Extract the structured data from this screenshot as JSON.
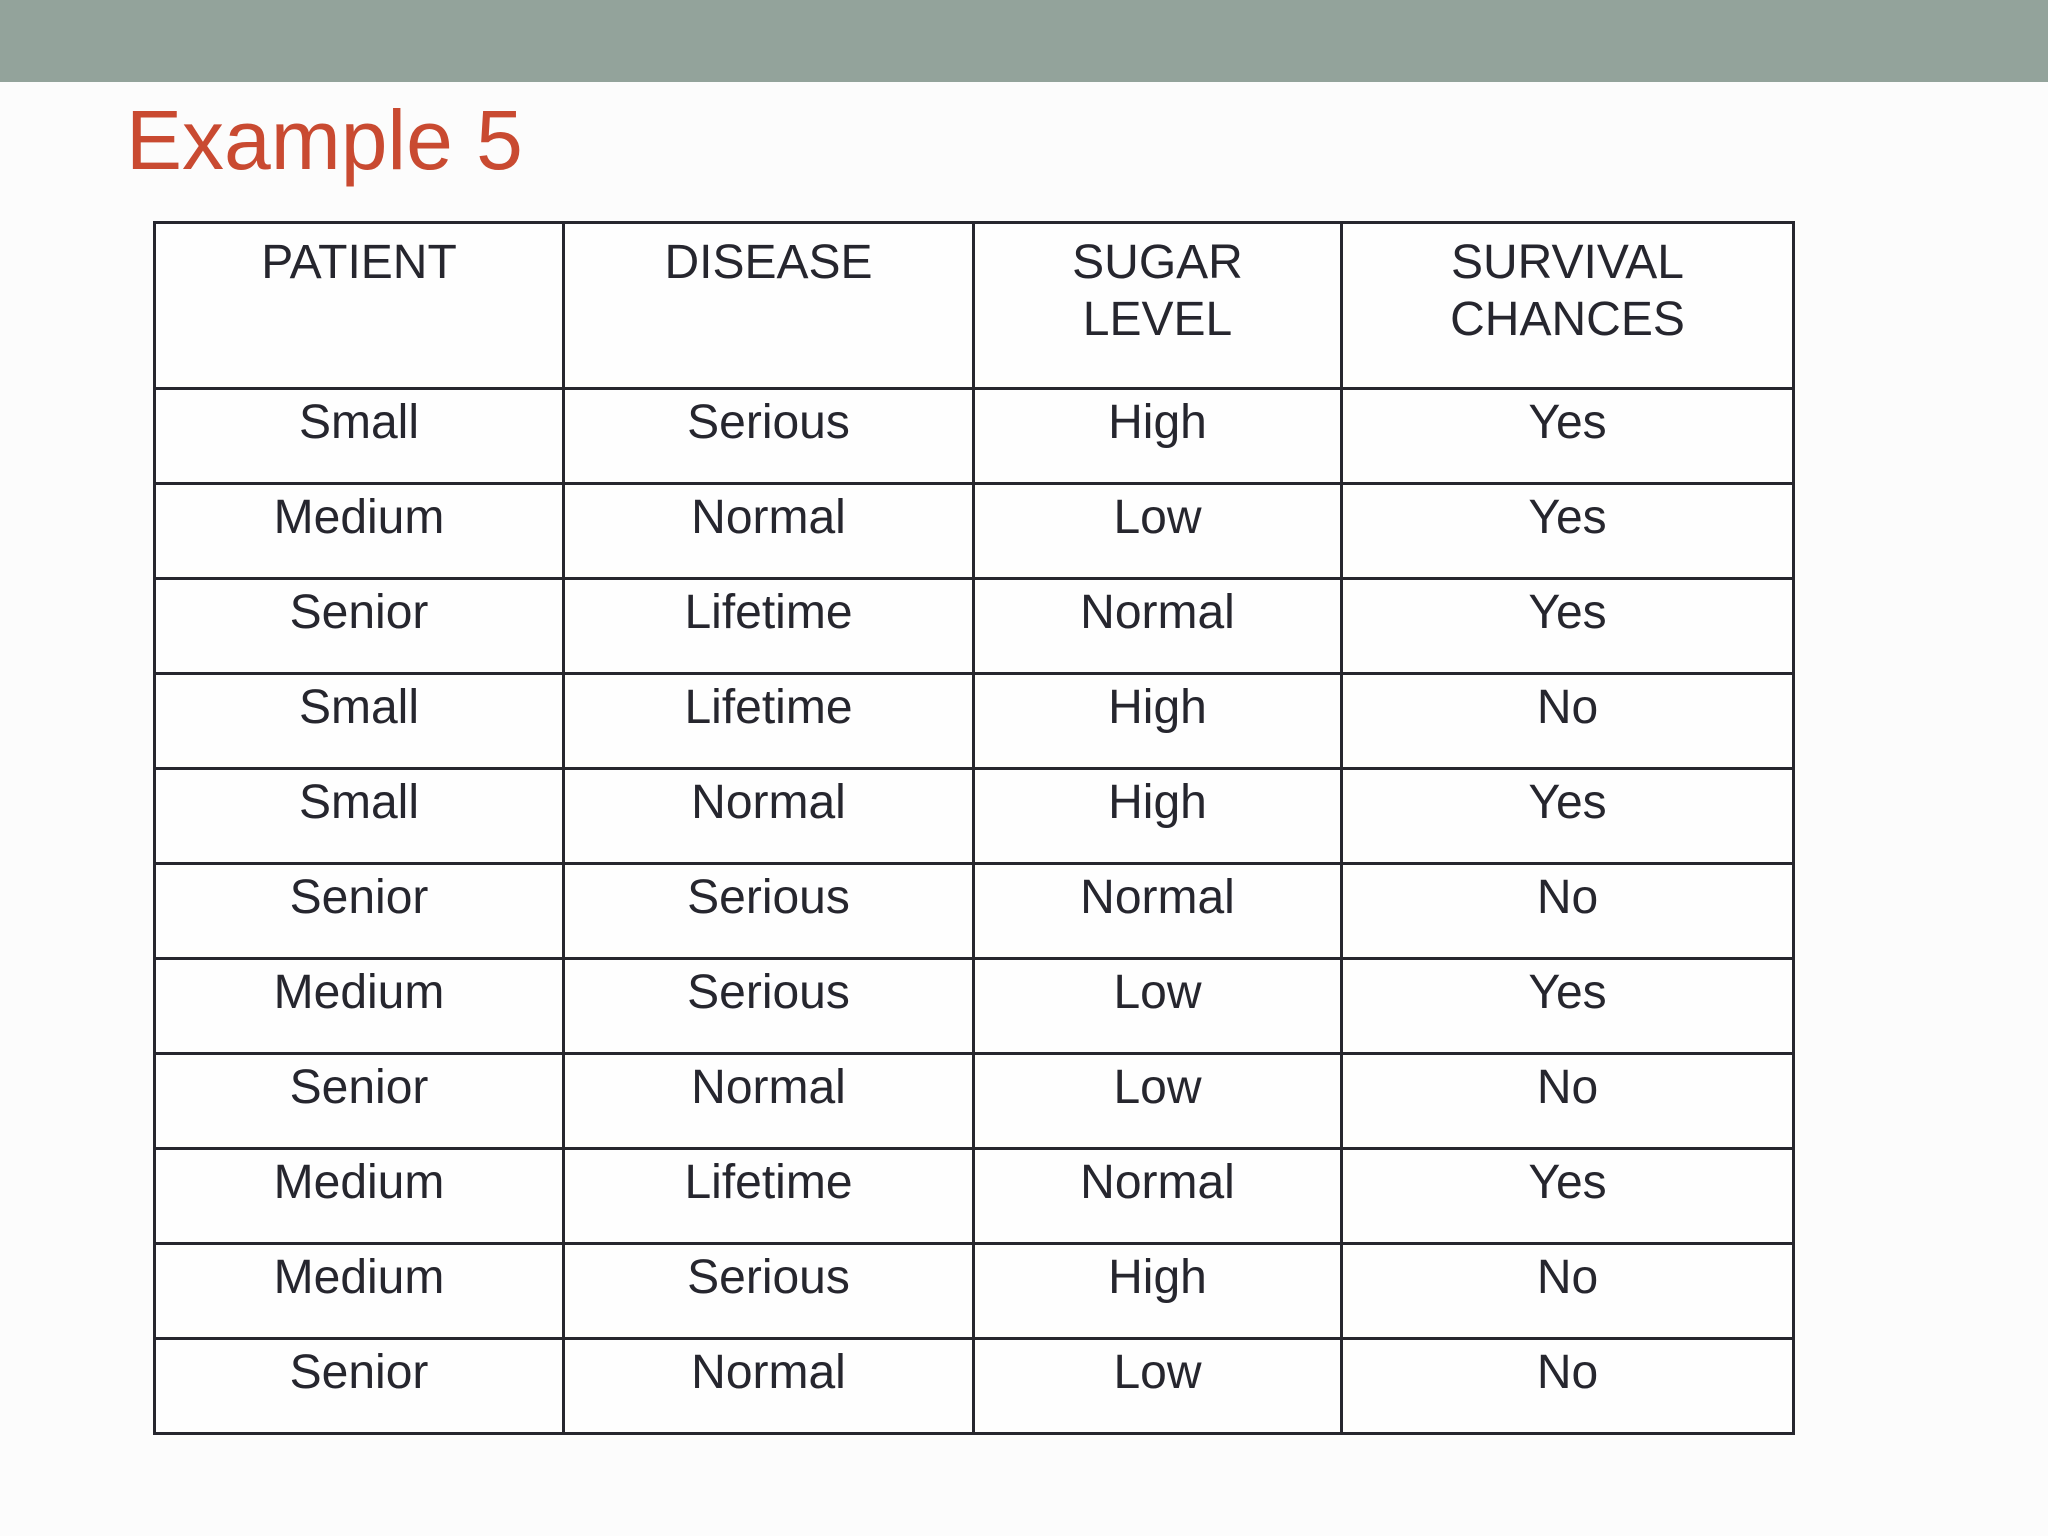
{
  "slide": {
    "title": "Example 5"
  },
  "colors": {
    "top-bar": "#93a39b",
    "title": "#c94a31",
    "text": "#26262e",
    "border": "#26262e",
    "background": "#fcfcfc"
  },
  "table": {
    "headers": [
      "PATIENT",
      "DISEASE",
      "SUGAR\nLEVEL",
      "SURVIVAL\nCHANCES"
    ],
    "rows": [
      [
        "Small",
        "Serious",
        "High",
        "Yes"
      ],
      [
        "Medium",
        "Normal",
        "Low",
        "Yes"
      ],
      [
        "Senior",
        "Lifetime",
        "Normal",
        "Yes"
      ],
      [
        "Small",
        "Lifetime",
        "High",
        "No"
      ],
      [
        "Small",
        "Normal",
        "High",
        "Yes"
      ],
      [
        "Senior",
        "Serious",
        "Normal",
        "No"
      ],
      [
        "Medium",
        "Serious",
        "Low",
        "Yes"
      ],
      [
        "Senior",
        "Normal",
        "Low",
        "No"
      ],
      [
        "Medium",
        "Lifetime",
        "Normal",
        "Yes"
      ],
      [
        "Medium",
        "Serious",
        "High",
        "No"
      ],
      [
        "Senior",
        "Normal",
        "Low",
        "No"
      ]
    ]
  }
}
